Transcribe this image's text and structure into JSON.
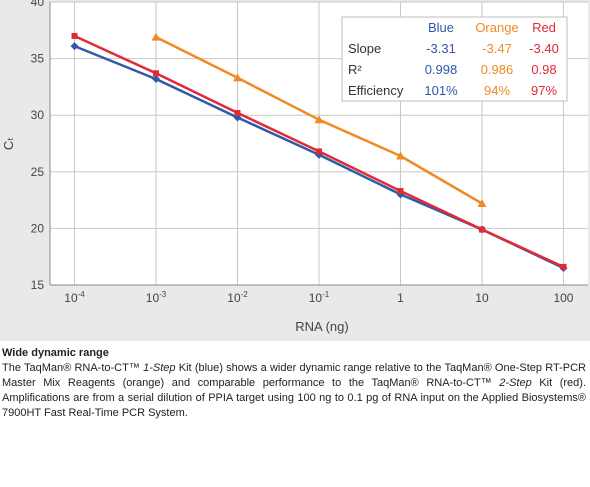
{
  "chart_data": {
    "type": "line",
    "xlabel": "RNA (ng)",
    "ylabel": "Cₜ",
    "x_scale": "log",
    "x_ticks": [
      {
        "value": 0.0001,
        "base": "10",
        "exp": "-4"
      },
      {
        "value": 0.001,
        "base": "10",
        "exp": "-3"
      },
      {
        "value": 0.01,
        "base": "10",
        "exp": "-2"
      },
      {
        "value": 0.1,
        "base": "10",
        "exp": "-1"
      },
      {
        "value": 1,
        "base": "1",
        "exp": ""
      },
      {
        "value": 10,
        "base": "10",
        "exp": ""
      },
      {
        "value": 100,
        "base": "100",
        "exp": ""
      }
    ],
    "y_ticks": [
      15,
      20,
      25,
      30,
      35,
      40
    ],
    "ylim": [
      15,
      40
    ],
    "xlim": [
      5e-05,
      200
    ],
    "grid": true,
    "series": [
      {
        "name": "Blue",
        "color": "#2f5aa8",
        "marker": "diamond",
        "x": [
          0.0001,
          0.001,
          0.01,
          0.1,
          1,
          10,
          100
        ],
        "y": [
          36.1,
          33.2,
          29.8,
          26.5,
          23.0,
          19.9,
          16.5
        ]
      },
      {
        "name": "Orange",
        "color": "#f08a24",
        "marker": "triangle",
        "x": [
          0.001,
          0.01,
          0.1,
          1,
          10
        ],
        "y": [
          36.9,
          33.3,
          29.6,
          26.4,
          22.2
        ]
      },
      {
        "name": "Red",
        "color": "#e02a36",
        "marker": "square",
        "x": [
          0.0001,
          0.001,
          0.01,
          0.1,
          1,
          10,
          100
        ],
        "y": [
          37.0,
          33.7,
          30.2,
          26.8,
          23.3,
          19.9,
          16.6
        ]
      }
    ],
    "stats_table": {
      "headers": [
        "Blue",
        "Orange",
        "Red"
      ],
      "rows": [
        {
          "label": "Slope",
          "values": [
            "-3.31",
            "-3.47",
            "-3.40"
          ]
        },
        {
          "label": "R²",
          "values": [
            "0.998",
            "0.986",
            "0.98"
          ]
        },
        {
          "label": "Efficiency",
          "values": [
            "101%",
            "94%",
            "97%"
          ]
        }
      ]
    }
  },
  "caption": {
    "title": "Wide dynamic range",
    "body_html": "The TaqMan® RNA-to-CT™ <i>1-Step</i> Kit (blue) shows a wider dynamic range relative to the TaqMan® One-Step RT-PCR Master Mix Reagents (orange) and comparable performance to the TaqMan® RNA-to-CT™ <i>2-Step</i> Kit (red). Amplifications are from a serial dilution of PPIA target using 100 ng to 0.1 pg of RNA input on the Applied Biosystems® 7900HT Fast Real-Time PCR System."
  }
}
